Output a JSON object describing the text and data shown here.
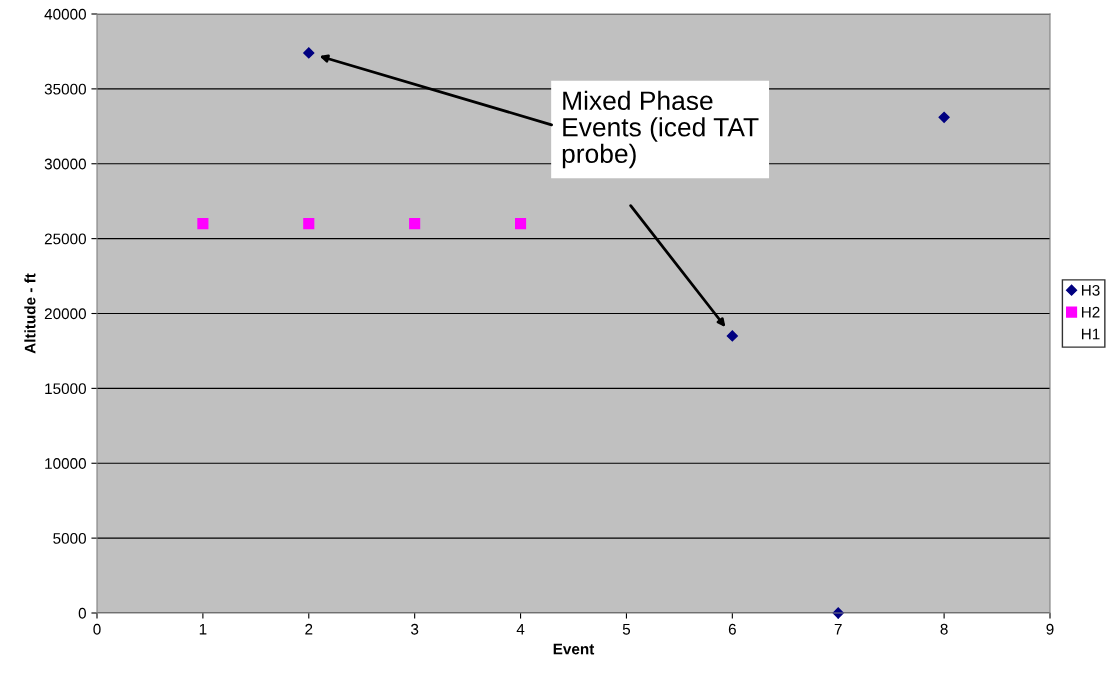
{
  "chart_data": {
    "type": "scatter",
    "xlabel": "Event",
    "ylabel": "Altitude - ft",
    "xlim": [
      0,
      9
    ],
    "xticks": [
      0,
      1,
      2,
      3,
      4,
      5,
      6,
      7,
      8,
      9
    ],
    "ylim": [
      0,
      40000
    ],
    "yticks": [
      0,
      5000,
      10000,
      15000,
      20000,
      25000,
      30000,
      35000,
      40000
    ],
    "grid": "y",
    "legend": "right",
    "series": [
      {
        "name": "H3",
        "color": "#000080",
        "marker": "diamond",
        "x": [
          2,
          6,
          7,
          8
        ],
        "values": [
          37400,
          18500,
          0,
          33100
        ]
      },
      {
        "name": "H2",
        "color": "#ff00ff",
        "marker": "square",
        "x": [
          1,
          2,
          3,
          4
        ],
        "values": [
          26000,
          26000,
          26000,
          26000
        ]
      },
      {
        "name": "H1",
        "marker": "none"
      }
    ],
    "annotations": [
      "Mixed Phase Events (iced TAT probe)"
    ]
  }
}
